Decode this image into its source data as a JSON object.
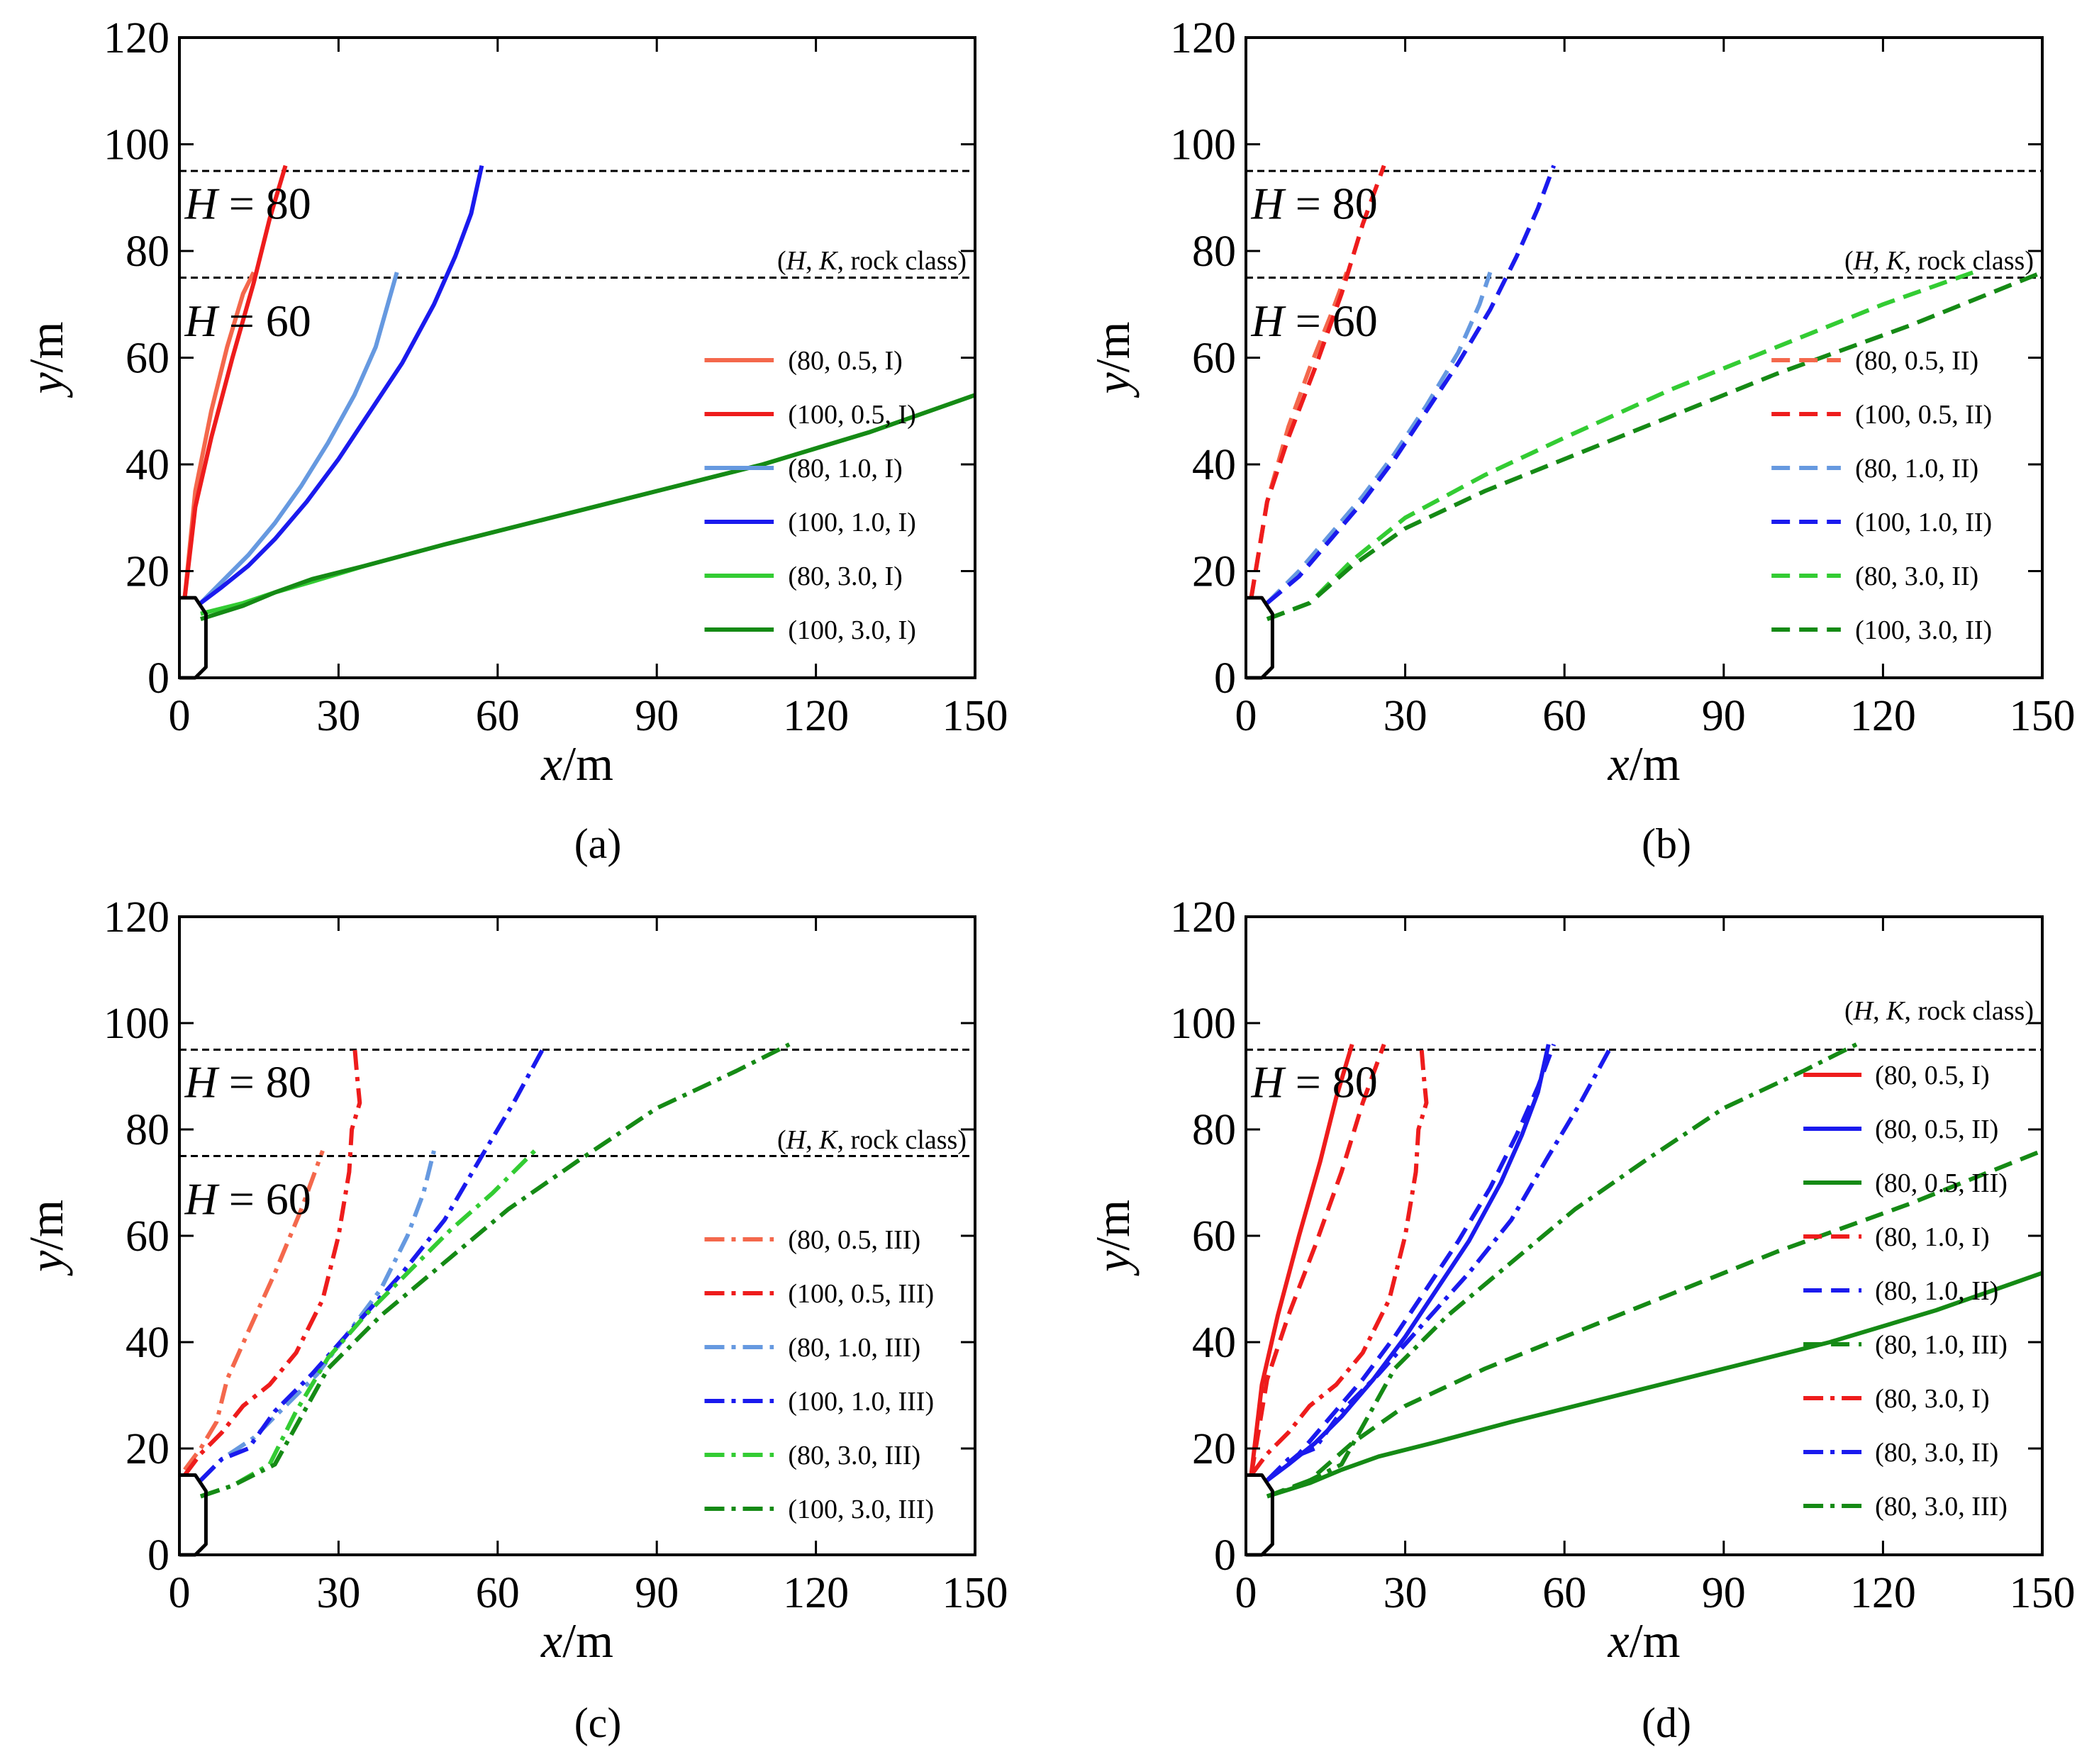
{
  "figure": {
    "colors": {
      "salmon": "#f4684c",
      "red": "#ee1c1c",
      "light_blue": "#6699e0",
      "blue": "#1a1aee",
      "light_green": "#33cc33",
      "dark_green": "#158a15",
      "black": "#000000"
    },
    "line_styles": {
      "solid": "",
      "dashed": "26 13",
      "dashdot": "28 10 6 10"
    },
    "tunnel_outline": [
      [
        0,
        15
      ],
      [
        3,
        15
      ],
      [
        5,
        12
      ],
      [
        5,
        2
      ],
      [
        3,
        0
      ],
      [
        0,
        0
      ]
    ]
  },
  "chart_data": [
    {
      "type": "line",
      "panel_label": "(a)",
      "xlabel_italic": "x",
      "xlabel_unit": "/m",
      "ylabel_italic": "y",
      "ylabel_unit": "/m",
      "xlim": [
        0,
        150
      ],
      "ylim": [
        0,
        120
      ],
      "xticks": [
        0,
        30,
        60,
        90,
        120,
        150
      ],
      "yticks": [
        0,
        20,
        40,
        60,
        80,
        100,
        120
      ],
      "xtick_labels": [
        "0",
        "30",
        "60",
        "90",
        "120",
        "150"
      ],
      "ytick_labels": [
        "0",
        "20",
        "40",
        "60",
        "80",
        "100",
        "120"
      ],
      "hlines": [
        95,
        75
      ],
      "annotations": [
        {
          "italic": "H",
          "text": " = 80",
          "x": 1,
          "y": 89
        },
        {
          "italic": "H",
          "text": " = 60",
          "x": 1,
          "y": 67
        }
      ],
      "legend_title": {
        "prefix": "(",
        "italic1": "H",
        "sep1": ", ",
        "italic2": "K",
        "rest": ", rock class)"
      },
      "legend_pos": "right",
      "series": [
        {
          "name": "(80, 0.5, I)",
          "color": "salmon",
          "style": "solid",
          "x": [
            1,
            3,
            6,
            9,
            12,
            14
          ],
          "y": [
            15,
            35,
            50,
            62,
            72,
            76
          ]
        },
        {
          "name": "(100, 0.5, I)",
          "color": "red",
          "style": "solid",
          "x": [
            1,
            3,
            6,
            10,
            14,
            17,
            20
          ],
          "y": [
            15,
            32,
            45,
            60,
            74,
            86,
            96
          ]
        },
        {
          "name": "(80, 1.0, I)",
          "color": "light_blue",
          "style": "solid",
          "x": [
            4,
            8,
            13,
            18,
            23,
            28,
            33,
            37,
            41
          ],
          "y": [
            14,
            18,
            23,
            29,
            36,
            44,
            53,
            62,
            76
          ]
        },
        {
          "name": "(100, 1.0, I)",
          "color": "blue",
          "style": "solid",
          "x": [
            4,
            8,
            13,
            18,
            24,
            30,
            36,
            42,
            48,
            52,
            55,
            57
          ],
          "y": [
            14,
            17,
            21,
            26,
            33,
            41,
            50,
            59,
            70,
            79,
            87,
            96
          ]
        },
        {
          "name": "(80, 3.0, I)",
          "color": "light_green",
          "style": "solid",
          "x": [
            4,
            12,
            18,
            25,
            35,
            50,
            70,
            90,
            110,
            130,
            150
          ],
          "y": [
            12,
            14,
            16,
            18,
            21,
            25,
            30,
            35,
            40,
            46,
            53
          ]
        },
        {
          "name": "(100, 3.0, I)",
          "color": "dark_green",
          "style": "solid",
          "x": [
            4,
            12,
            18,
            25,
            35,
            50,
            70,
            90,
            110,
            130,
            150
          ],
          "y": [
            11,
            13.5,
            16,
            18.5,
            21,
            25,
            30,
            35,
            40,
            46,
            53
          ]
        }
      ]
    },
    {
      "type": "line",
      "panel_label": "(b)",
      "xlabel_italic": "x",
      "xlabel_unit": "/m",
      "ylabel_italic": "y",
      "ylabel_unit": "/m",
      "xlim": [
        0,
        150
      ],
      "ylim": [
        0,
        120
      ],
      "xticks": [
        0,
        30,
        60,
        90,
        120,
        150
      ],
      "yticks": [
        0,
        20,
        40,
        60,
        80,
        100,
        120
      ],
      "xtick_labels": [
        "0",
        "30",
        "60",
        "90",
        "120",
        "150"
      ],
      "ytick_labels": [
        "0",
        "20",
        "40",
        "60",
        "80",
        "100",
        "120"
      ],
      "hlines": [
        95,
        75
      ],
      "annotations": [
        {
          "italic": "H",
          "text": " = 80",
          "x": 1,
          "y": 89
        },
        {
          "italic": "H",
          "text": " = 60",
          "x": 1,
          "y": 67
        }
      ],
      "legend_title": {
        "prefix": "(",
        "italic1": "H",
        "sep1": ", ",
        "italic2": "K",
        "rest": ", rock class)"
      },
      "legend_pos": "right",
      "series": [
        {
          "name": "(80, 0.5, II)",
          "color": "salmon",
          "style": "dashed",
          "x": [
            1,
            4,
            8,
            12,
            16,
            19
          ],
          "y": [
            15,
            33,
            47,
            58,
            68,
            76
          ]
        },
        {
          "name": "(100, 0.5, II)",
          "color": "red",
          "style": "dashed",
          "x": [
            1,
            4,
            8,
            13,
            18,
            22,
            26
          ],
          "y": [
            15,
            33,
            45,
            58,
            72,
            85,
            96
          ]
        },
        {
          "name": "(80, 1.0, II)",
          "color": "light_blue",
          "style": "dashed",
          "x": [
            4,
            10,
            16,
            22,
            28,
            34,
            40,
            44,
            46
          ],
          "y": [
            14,
            20,
            27,
            34,
            42,
            51,
            61,
            70,
            76
          ]
        },
        {
          "name": "(100, 1.0, II)",
          "color": "blue",
          "style": "dashed",
          "x": [
            4,
            10,
            16,
            22,
            28,
            34,
            40,
            46,
            51,
            55,
            58
          ],
          "y": [
            14,
            19,
            26,
            33,
            41,
            50,
            59,
            69,
            79,
            88,
            96
          ]
        },
        {
          "name": "(80, 3.0, II)",
          "color": "light_green",
          "style": "dashed",
          "x": [
            4,
            12,
            20,
            30,
            45,
            60,
            80,
            100,
            120,
            137
          ],
          "y": [
            11,
            14,
            22,
            30,
            38,
            45,
            54,
            62,
            70,
            76
          ]
        },
        {
          "name": "(100, 3.0, II)",
          "color": "dark_green",
          "style": "dashed",
          "x": [
            4,
            12,
            20,
            30,
            45,
            60,
            80,
            100,
            125,
            150
          ],
          "y": [
            11,
            14,
            21,
            28,
            35,
            41,
            49,
            57,
            66,
            76
          ]
        }
      ]
    },
    {
      "type": "line",
      "panel_label": "(c)",
      "xlabel_italic": "x",
      "xlabel_unit": "/m",
      "ylabel_italic": "y",
      "ylabel_unit": "/m",
      "xlim": [
        0,
        150
      ],
      "ylim": [
        0,
        120
      ],
      "xticks": [
        0,
        30,
        60,
        90,
        120,
        150
      ],
      "yticks": [
        0,
        20,
        40,
        60,
        80,
        100,
        120
      ],
      "xtick_labels": [
        "0",
        "30",
        "60",
        "90",
        "120",
        "150"
      ],
      "ytick_labels": [
        "0",
        "20",
        "40",
        "60",
        "80",
        "100",
        "120"
      ],
      "hlines": [
        95,
        75
      ],
      "annotations": [
        {
          "italic": "H",
          "text": " = 80",
          "x": 1,
          "y": 89
        },
        {
          "italic": "H",
          "text": " = 60",
          "x": 1,
          "y": 67
        }
      ],
      "legend_title": {
        "prefix": "(",
        "italic1": "H",
        "sep1": ", ",
        "italic2": "K",
        "rest": ", rock class)"
      },
      "legend_pos": "right",
      "series": [
        {
          "name": "(80, 0.5, III)",
          "color": "salmon",
          "style": "dashdot",
          "x": [
            1,
            4,
            7,
            9,
            13,
            18,
            23,
            27
          ],
          "y": [
            16,
            20,
            25,
            33,
            42,
            53,
            65,
            76
          ]
        },
        {
          "name": "(100, 0.5, III)",
          "color": "red",
          "style": "dashdot",
          "x": [
            1,
            4,
            8,
            12,
            17,
            22,
            27,
            30,
            32,
            32.5,
            34,
            33.5,
            33
          ],
          "y": [
            15,
            19,
            23,
            28,
            32,
            38,
            48,
            60,
            72,
            80,
            85,
            90,
            96
          ]
        },
        {
          "name": "(80, 1.0, III)",
          "color": "light_blue",
          "style": "dashdot",
          "x": [
            4,
            8,
            14,
            20,
            26,
            32,
            38,
            43,
            46,
            48
          ],
          "y": [
            14,
            18,
            22,
            28,
            34,
            42,
            50,
            60,
            68,
            76
          ]
        },
        {
          "name": "(100, 1.0, III)",
          "color": "blue",
          "style": "dashdot",
          "x": [
            4,
            8,
            13,
            18,
            25,
            33,
            42,
            50,
            57,
            63,
            69
          ],
          "y": [
            14,
            18,
            20,
            27,
            34,
            43,
            53,
            63,
            75,
            85,
            96
          ]
        },
        {
          "name": "(80, 3.0, III)",
          "color": "light_green",
          "style": "dashdot",
          "x": [
            4,
            10,
            17,
            22,
            28,
            35,
            43,
            51,
            59,
            67
          ],
          "y": [
            11,
            13,
            17,
            27,
            37,
            45,
            53,
            61,
            68,
            76
          ]
        },
        {
          "name": "(100, 3.0, III)",
          "color": "dark_green",
          "style": "dashdot",
          "x": [
            4,
            10,
            18,
            23,
            28,
            38,
            50,
            62,
            75,
            90,
            105,
            115
          ],
          "y": [
            11,
            13,
            17,
            26,
            35,
            45,
            55,
            65,
            74,
            84,
            91,
            96
          ]
        }
      ]
    },
    {
      "type": "line",
      "panel_label": "(d)",
      "xlabel_italic": "x",
      "xlabel_unit": "/m",
      "ylabel_italic": "y",
      "ylabel_unit": "/m",
      "xlim": [
        0,
        150
      ],
      "ylim": [
        0,
        120
      ],
      "xticks": [
        0,
        30,
        60,
        90,
        120,
        150
      ],
      "yticks": [
        0,
        20,
        40,
        60,
        80,
        100,
        120
      ],
      "xtick_labels": [
        "0",
        "30",
        "60",
        "90",
        "120",
        "150"
      ],
      "ytick_labels": [
        "0",
        "20",
        "40",
        "60",
        "80",
        "100",
        "120"
      ],
      "hlines": [
        95
      ],
      "annotations": [
        {
          "italic": "H",
          "text": " = 80",
          "x": 1,
          "y": 89
        }
      ],
      "legend_title": {
        "prefix": "(",
        "italic1": "H",
        "sep1": ", ",
        "italic2": "K",
        "rest": ", rock class)"
      },
      "legend_pos": "top-right",
      "series": [
        {
          "name": "(80, 0.5, I)",
          "color": "red",
          "style": "solid",
          "x": [
            1,
            3,
            6,
            10,
            14,
            17,
            20
          ],
          "y": [
            15,
            32,
            45,
            60,
            74,
            86,
            96
          ]
        },
        {
          "name": "(80, 0.5, II)",
          "color": "blue",
          "style": "solid",
          "x": [
            4,
            8,
            13,
            18,
            24,
            30,
            36,
            42,
            48,
            52,
            55,
            57
          ],
          "y": [
            14,
            17,
            21,
            26,
            33,
            41,
            50,
            59,
            70,
            79,
            87,
            96
          ]
        },
        {
          "name": "(80, 0.5, III)",
          "color": "dark_green",
          "style": "solid",
          "x": [
            4,
            12,
            18,
            25,
            35,
            50,
            70,
            90,
            110,
            130,
            150
          ],
          "y": [
            11,
            13.5,
            16,
            18.5,
            21,
            25,
            30,
            35,
            40,
            46,
            53
          ]
        },
        {
          "name": "(80, 1.0, I)",
          "color": "red",
          "style": "dashed",
          "x": [
            1,
            4,
            8,
            13,
            18,
            22,
            26
          ],
          "y": [
            15,
            33,
            45,
            58,
            72,
            85,
            96
          ]
        },
        {
          "name": "(80, 1.0, II)",
          "color": "blue",
          "style": "dashed",
          "x": [
            4,
            10,
            16,
            22,
            28,
            34,
            40,
            46,
            51,
            55,
            58
          ],
          "y": [
            14,
            19,
            26,
            33,
            41,
            50,
            59,
            69,
            79,
            88,
            96
          ]
        },
        {
          "name": "(80, 1.0, III)",
          "color": "dark_green",
          "style": "dashed",
          "x": [
            4,
            12,
            20,
            30,
            45,
            60,
            80,
            100,
            125,
            150
          ],
          "y": [
            11,
            14,
            21,
            28,
            35,
            41,
            49,
            57,
            66,
            76
          ]
        },
        {
          "name": "(80, 3.0, I)",
          "color": "red",
          "style": "dashdot",
          "x": [
            1,
            4,
            8,
            12,
            17,
            22,
            27,
            30,
            32,
            32.5,
            34,
            33.5,
            33
          ],
          "y": [
            15,
            19,
            23,
            28,
            32,
            38,
            48,
            60,
            72,
            80,
            85,
            90,
            96
          ]
        },
        {
          "name": "(80, 3.0, II)",
          "color": "blue",
          "style": "dashdot",
          "x": [
            4,
            8,
            13,
            18,
            25,
            33,
            42,
            50,
            57,
            63,
            69
          ],
          "y": [
            14,
            18,
            20,
            27,
            34,
            43,
            53,
            63,
            75,
            85,
            96
          ]
        },
        {
          "name": "(80, 3.0, III)",
          "color": "dark_green",
          "style": "dashdot",
          "x": [
            4,
            10,
            18,
            23,
            28,
            38,
            50,
            62,
            75,
            90,
            105,
            115
          ],
          "y": [
            11,
            13,
            17,
            26,
            35,
            45,
            55,
            65,
            74,
            84,
            91,
            96
          ]
        }
      ]
    }
  ]
}
